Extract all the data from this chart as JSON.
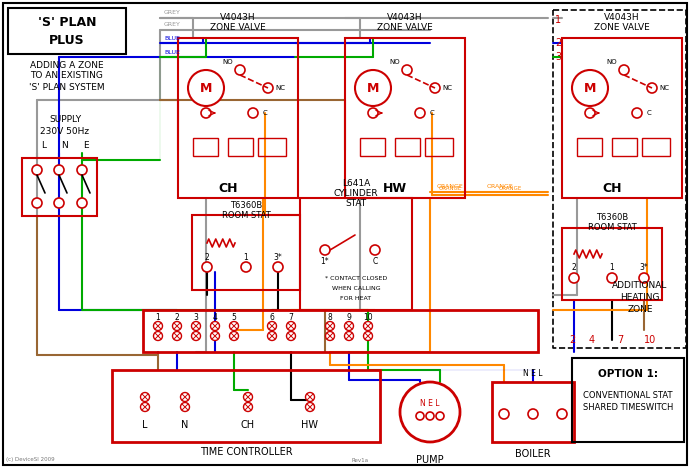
{
  "bg": "#ffffff",
  "c_black": "#000000",
  "c_red": "#cc0000",
  "c_grey": "#999999",
  "c_blue": "#0000dd",
  "c_green": "#00aa00",
  "c_brown": "#996633",
  "c_orange": "#FF8800",
  "c_dkred": "#aa0000",
  "terms": [
    "1",
    "2",
    "3",
    "4",
    "5",
    "6",
    "7",
    "8",
    "9",
    "10"
  ],
  "tc_terms": [
    "L",
    "N",
    "CH",
    "HW"
  ],
  "title1": "'S' PLAN",
  "title2": "PLUS",
  "add_sub1": "ADDING A ZONE",
  "add_sub2": "TO AN EXISTING",
  "add_sub3": "'S' PLAN SYSTEM",
  "supply": "SUPPLY",
  "supply2": "230V 50Hz",
  "lne": [
    "L",
    "N",
    "E"
  ],
  "zv_title": "V4043H",
  "zv_sub": "ZONE VALVE",
  "ch": "CH",
  "hw": "HW",
  "stat_title": "T6360B",
  "stat_sub": "ROOM STAT",
  "cyl1": "L641A",
  "cyl2": "CYLINDER",
  "cyl3": "STAT",
  "cyl_note1": "* CONTACT CLOSED",
  "cyl_note2": "WHEN CALLING",
  "cyl_note3": "FOR HEAT",
  "tc": "TIME CONTROLLER",
  "pump": "PUMP",
  "boiler": "BOILER",
  "opt1": "OPTION 1:",
  "opt2": "CONVENTIONAL STAT",
  "opt3": "SHARED TIMESWITCH",
  "add1": "ADDITIONAL",
  "add2": "HEATING",
  "add3": "ZONE",
  "rn1": "1",
  "rn2": "2",
  "rn3": "3",
  "rn10": "10",
  "rn2b": "2",
  "rn4": "4",
  "rn7": "7",
  "copy": "(c) DeviceSI 2009",
  "rev": "Rev1a",
  "nel": "N E L",
  "no": "NO",
  "nc": "NC",
  "c_label": "C",
  "m_label": "M",
  "term2": "2",
  "term1": "1",
  "term3s": "3*",
  "term1s": "1*"
}
